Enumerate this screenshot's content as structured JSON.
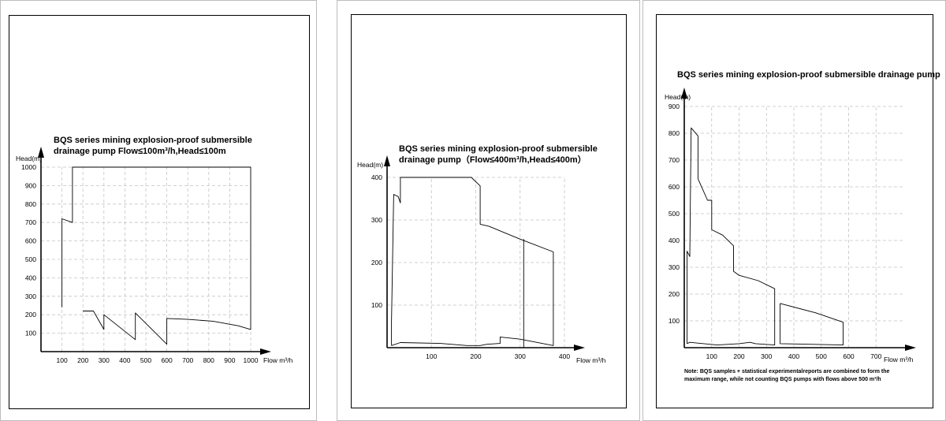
{
  "chart_data": [
    {
      "type": "area",
      "title_line1": "BQS series mining explosion-proof submersible",
      "title_line2": "drainage pump Flow≤100m³/h,Head≤100m",
      "xlabel": "Flow m³/h",
      "ylabel": "Head(m)",
      "xlim": [
        0,
        1000
      ],
      "ylim": [
        0,
        1000
      ],
      "x_ticks": [
        100,
        200,
        300,
        400,
        500,
        600,
        700,
        800,
        900,
        1000
      ],
      "y_ticks": [
        100,
        200,
        300,
        400,
        500,
        600,
        700,
        800,
        900,
        1000
      ],
      "grid": true,
      "series": [
        {
          "values": [
            [
              100,
              240
            ],
            [
              100,
              720
            ],
            [
              150,
              700
            ],
            [
              150,
              1000
            ],
            [
              1000,
              1000
            ],
            [
              1000,
              120
            ],
            [
              940,
              140
            ],
            [
              820,
              165
            ],
            [
              700,
              175
            ],
            [
              600,
              180
            ],
            [
              600,
              40
            ],
            [
              450,
              210
            ],
            [
              450,
              65
            ],
            [
              300,
              200
            ],
            [
              300,
              120
            ],
            [
              250,
              220
            ],
            [
              200,
              220
            ]
          ]
        }
      ]
    },
    {
      "type": "area",
      "title_line1": "BQS series mining explosion-proof submersible",
      "title_line2": "drainage pump（Flow≤400m³/h,Head≤400m）",
      "xlabel": "Flow m³/h",
      "ylabel": "Head(m)",
      "xlim": [
        0,
        400
      ],
      "ylim": [
        0,
        400
      ],
      "x_ticks": [
        100,
        200,
        300,
        400
      ],
      "y_ticks": [
        100,
        200,
        300,
        400
      ],
      "grid": true,
      "series": [
        {
          "values": [
            [
              10,
              5
            ],
            [
              10,
              60
            ],
            [
              15,
              360
            ],
            [
              25,
              355
            ],
            [
              30,
              340
            ],
            [
              30,
              400
            ],
            [
              190,
              400
            ],
            [
              210,
              380
            ],
            [
              210,
              290
            ],
            [
              230,
              285
            ],
            [
              300,
              255
            ],
            [
              375,
              225
            ],
            [
              375,
              5
            ],
            [
              300,
              20
            ],
            [
              255,
              25
            ],
            [
              255,
              10
            ],
            [
              225,
              8
            ],
            [
              210,
              5
            ],
            [
              180,
              5
            ],
            [
              120,
              10
            ],
            [
              30,
              12
            ],
            [
              10,
              5
            ]
          ]
        },
        {
          "values": [
            [
              308,
              255
            ],
            [
              308,
              0
            ]
          ]
        }
      ]
    },
    {
      "type": "area",
      "title": "BQS series mining explosion-proof submersible drainage pump",
      "xlabel": "Flow m³/h",
      "ylabel": "Head(m)",
      "xlim": [
        0,
        800
      ],
      "ylim": [
        0,
        900
      ],
      "x_ticks": [
        100,
        200,
        300,
        400,
        500,
        600,
        700
      ],
      "y_ticks": [
        100,
        200,
        300,
        400,
        500,
        600,
        700,
        800,
        900
      ],
      "grid": true,
      "note_line1": "Note: BQS samples + statistical experimentalreports are combined to form the",
      "note_line2": "maximum range, while not counting BQS pumps with flows above 500 m³/h",
      "series": [
        {
          "values": [
            [
              10,
              15
            ],
            [
              10,
              360
            ],
            [
              20,
              340
            ],
            [
              25,
              820
            ],
            [
              50,
              790
            ],
            [
              50,
              630
            ],
            [
              85,
              550
            ],
            [
              100,
              550
            ],
            [
              100,
              440
            ],
            [
              140,
              420
            ],
            [
              180,
              380
            ],
            [
              180,
              285
            ],
            [
              200,
              270
            ],
            [
              270,
              250
            ],
            [
              330,
              220
            ],
            [
              330,
              10
            ],
            [
              260,
              15
            ],
            [
              240,
              20
            ],
            [
              200,
              15
            ],
            [
              120,
              10
            ],
            [
              20,
              20
            ],
            [
              10,
              15
            ]
          ]
        },
        {
          "values": [
            [
              350,
              165
            ],
            [
              480,
              130
            ],
            [
              580,
              95
            ],
            [
              580,
              10
            ],
            [
              350,
              15
            ],
            [
              350,
              165
            ]
          ]
        }
      ]
    }
  ]
}
